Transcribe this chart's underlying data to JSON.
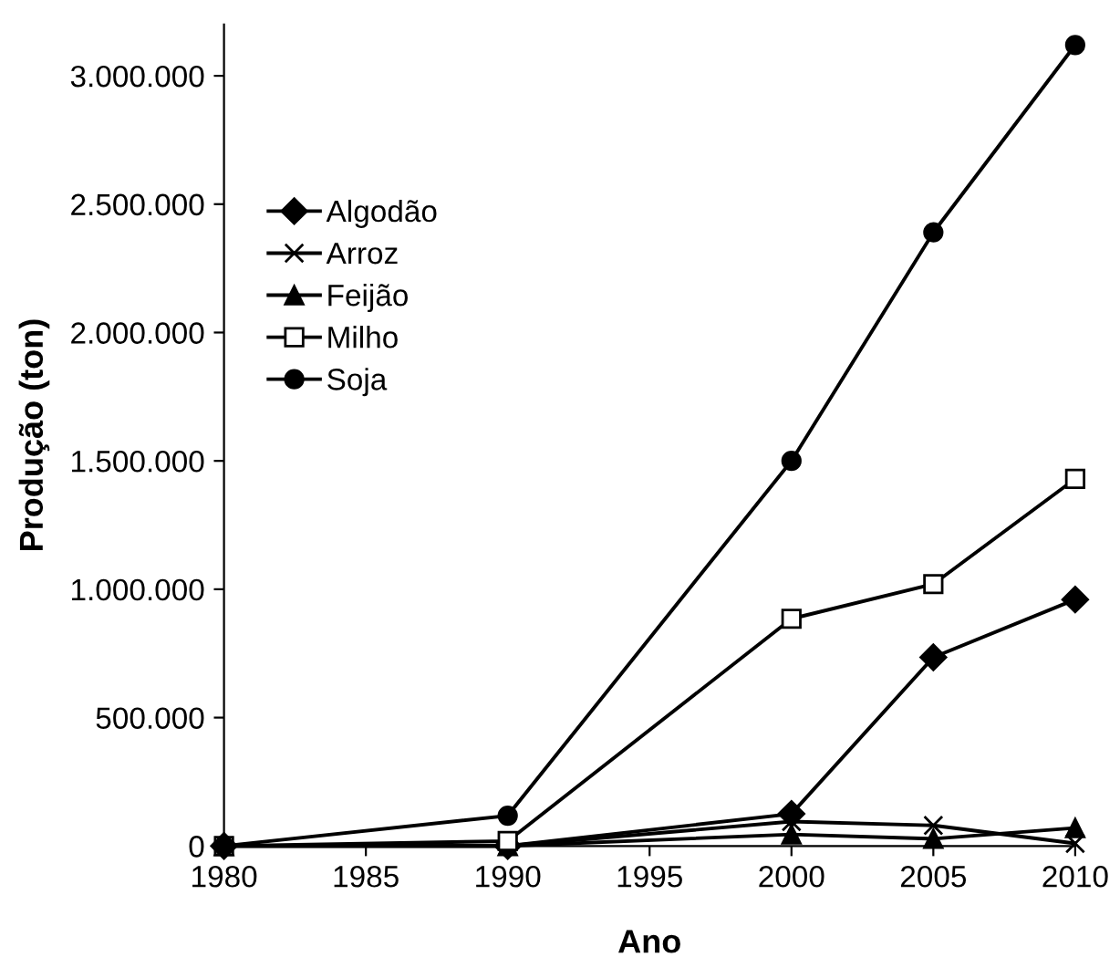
{
  "chart_data": {
    "type": "line",
    "xlabel": "Ano",
    "ylabel": "Produção (ton)",
    "x": [
      1980,
      1990,
      2000,
      2005,
      2010
    ],
    "series": [
      {
        "name": "Algodão",
        "color": "#000000",
        "marker": "diamond",
        "values": [
          0,
          0,
          125000,
          735000,
          960000
        ]
      },
      {
        "name": "Arroz",
        "color": "#000000",
        "marker": "cross",
        "values": [
          0,
          0,
          95000,
          80000,
          10000
        ]
      },
      {
        "name": "Feijão",
        "color": "#000000",
        "marker": "triangle",
        "values": [
          0,
          0,
          45000,
          28000,
          70000
        ]
      },
      {
        "name": "Milho",
        "color": "#000000",
        "marker": "square",
        "values": [
          0,
          19000,
          885000,
          1020000,
          1430000
        ]
      },
      {
        "name": "Soja",
        "color": "#000000",
        "marker": "circle",
        "values": [
          0,
          118000,
          1500000,
          2390000,
          3120000
        ]
      }
    ],
    "xlim": [
      1980,
      2010
    ],
    "xticks": [
      1980,
      1985,
      1990,
      1995,
      2000,
      2005,
      2010
    ],
    "ylim": [
      0,
      3200000
    ],
    "yticks": [
      {
        "value": 0,
        "label": "0"
      },
      {
        "value": 500000,
        "label": "500.000"
      },
      {
        "value": 1000000,
        "label": "1.000.000"
      },
      {
        "value": 1500000,
        "label": "1.500.000"
      },
      {
        "value": 2000000,
        "label": "2.000.000"
      },
      {
        "value": 2500000,
        "label": "2.500.000"
      },
      {
        "value": 3000000,
        "label": "3.000.000"
      }
    ],
    "grid": false,
    "legend": "top left",
    "line_style": "solid"
  }
}
